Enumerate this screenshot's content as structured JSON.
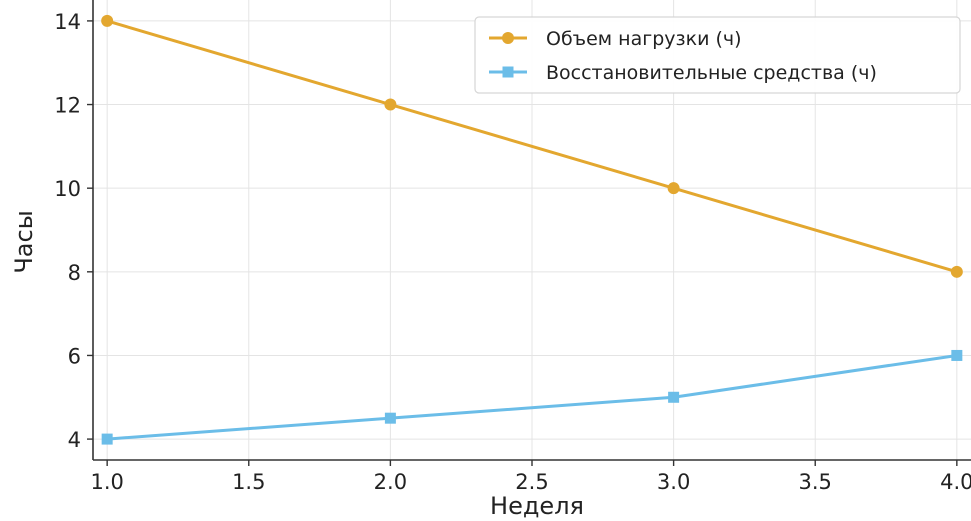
{
  "chart_data": {
    "type": "line",
    "title": "",
    "xlabel": "Неделя",
    "ylabel": "Часы",
    "x": [
      1.0,
      2.0,
      3.0,
      4.0
    ],
    "xlim": [
      0.95,
      4.05
    ],
    "ylim": [
      3.5,
      14.5
    ],
    "xticks": [
      "1.0",
      "1.5",
      "2.0",
      "2.5",
      "3.0",
      "3.5",
      "4.0"
    ],
    "yticks": [
      "4",
      "6",
      "8",
      "10",
      "12",
      "14"
    ],
    "grid": true,
    "legend_position": "top-right",
    "series": [
      {
        "name": "Объем нагрузки (ч)",
        "values": [
          14,
          12,
          10,
          8
        ],
        "color": "#E3A72F",
        "marker": "circle"
      },
      {
        "name": "Восстановительные средства (ч)",
        "values": [
          4,
          4.5,
          5,
          6
        ],
        "color": "#6BBDE8",
        "marker": "square"
      }
    ]
  }
}
